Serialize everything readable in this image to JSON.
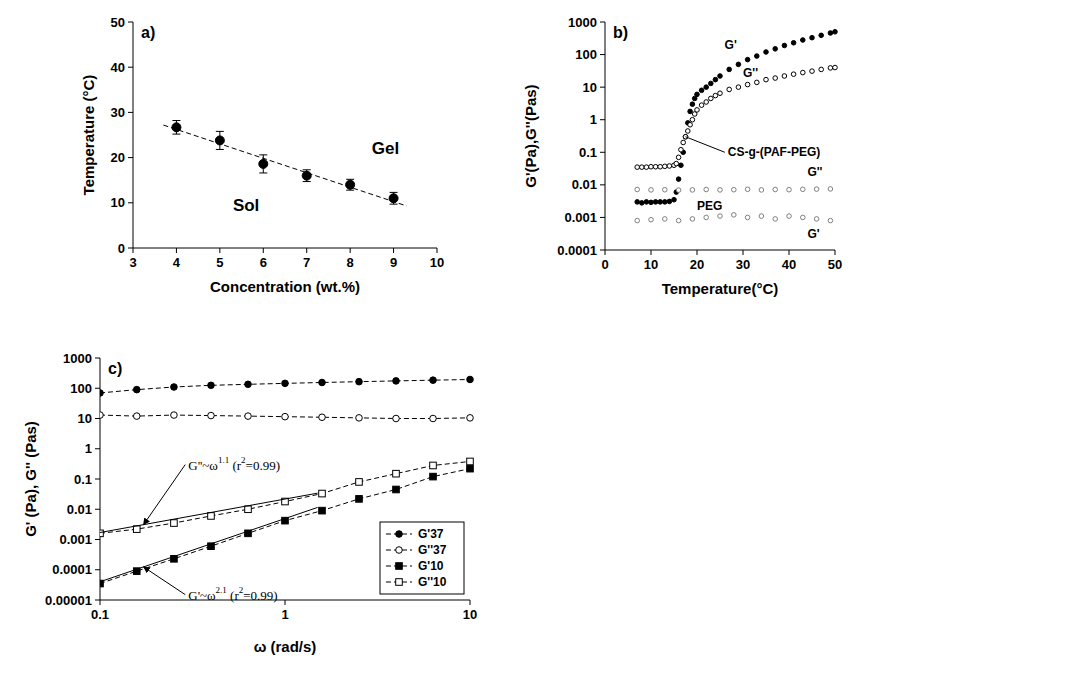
{
  "chart_data": [
    {
      "type": "scatter",
      "label": "a)",
      "x_label": "Concentration (wt.%)",
      "y_label": "Temperature (°C)",
      "xlim": [
        3,
        10
      ],
      "xticks": [
        3,
        4,
        5,
        6,
        7,
        8,
        9,
        10
      ],
      "ylim": [
        0,
        50
      ],
      "yticks": [
        0,
        10,
        20,
        30,
        40,
        50
      ],
      "grid": false,
      "series": [
        {
          "type": "scatter",
          "color": "#000000",
          "marker": "circle",
          "x": [
            4,
            5,
            6,
            7,
            8,
            9
          ],
          "values": [
            26.7,
            23.8,
            18.6,
            16,
            14,
            11
          ],
          "errors": [
            1.5,
            2,
            2,
            1.3,
            1.2,
            1.3
          ]
        },
        {
          "type": "line",
          "color": "#000000",
          "marker": "none",
          "line_style": "dashed",
          "x": [
            3.7,
            9.3
          ],
          "values": [
            27.2,
            9.3
          ]
        }
      ],
      "annotations": [
        {
          "text": "Gel",
          "x": 8.5,
          "y": 22
        },
        {
          "text": "Sol",
          "x": 5.3,
          "y": 9.5
        }
      ]
    },
    {
      "type": "scatter",
      "label": "b)",
      "x_label": "Temperature(°C)",
      "y_label": "G'(Pa),G''(Pas)",
      "log": "y",
      "xlim": [
        0,
        50
      ],
      "xticks": [
        0,
        10,
        20,
        30,
        40,
        50
      ],
      "ylim": [
        0.0001,
        1000
      ],
      "yticks": [
        0.0001,
        0.001,
        0.01,
        0.1,
        1,
        10,
        100,
        1000
      ],
      "grid": false,
      "series": [
        {
          "type": "scatter",
          "color": "#000000",
          "marker": "circle",
          "x": [
            7,
            8,
            9,
            10,
            11,
            12,
            13,
            14,
            15,
            15.5,
            16,
            16.5,
            17,
            17.5,
            18,
            18.5,
            19,
            19.5,
            20,
            21,
            22,
            23,
            24,
            25,
            27,
            29,
            31,
            33,
            35,
            37,
            39,
            41,
            43,
            45,
            47,
            49,
            50
          ],
          "values": [
            0.003,
            0.0028,
            0.003,
            0.0029,
            0.003,
            0.003,
            0.003,
            0.0031,
            0.0035,
            0.006,
            0.015,
            0.04,
            0.1,
            0.3,
            0.8,
            1.8,
            3,
            4.5,
            6,
            8,
            10,
            13,
            17,
            22,
            35,
            50,
            70,
            90,
            120,
            150,
            190,
            230,
            280,
            330,
            390,
            460,
            500
          ]
        },
        {
          "type": "scatter",
          "color": "#000000",
          "marker": "open_circle",
          "x": [
            7,
            8,
            9,
            10,
            11,
            12,
            13,
            14,
            15,
            15.5,
            16,
            16.5,
            17,
            17.5,
            18,
            18.5,
            19,
            19.5,
            20,
            21,
            22,
            23,
            24,
            25,
            27,
            29,
            31,
            33,
            35,
            37,
            39,
            41,
            43,
            45,
            47,
            49,
            50
          ],
          "values": [
            0.035,
            0.035,
            0.035,
            0.036,
            0.036,
            0.036,
            0.037,
            0.038,
            0.04,
            0.045,
            0.07,
            0.12,
            0.2,
            0.3,
            0.45,
            0.7,
            1,
            1.5,
            2,
            2.8,
            3.5,
            4.5,
            5.5,
            6.5,
            8.5,
            10,
            12,
            14,
            17,
            19,
            22,
            25,
            28,
            31,
            35,
            39,
            40
          ]
        },
        {
          "type": "scatter",
          "color": "#808080",
          "marker": "open_circle",
          "x": [
            7,
            10,
            13,
            16,
            19,
            22,
            25,
            28,
            31,
            34,
            37,
            40,
            43,
            46,
            49
          ],
          "values": [
            0.0072,
            0.007,
            0.0071,
            0.0069,
            0.007,
            0.0072,
            0.007,
            0.0071,
            0.0073,
            0.007,
            0.0072,
            0.0071,
            0.0073,
            0.0074,
            0.0075
          ]
        },
        {
          "type": "scatter",
          "color": "#808080",
          "marker": "open_circle",
          "x": [
            7,
            10,
            13,
            16,
            19,
            22,
            25,
            28,
            31,
            34,
            37,
            40,
            43,
            46,
            49
          ],
          "values": [
            0.0008,
            0.00085,
            0.0009,
            0.0008,
            0.0009,
            0.001,
            0.0011,
            0.0012,
            0.001,
            0.0011,
            0.0009,
            0.0011,
            0.001,
            0.0009,
            0.0008
          ]
        }
      ],
      "annotations": [
        {
          "text": "G'",
          "x": 26,
          "y": 200
        },
        {
          "text": "G''",
          "x": 30,
          "y": 28
        },
        {
          "text": "CS-g-(PAF-PEG)",
          "x": 26.7,
          "y": 0.1
        },
        {
          "text": "PEG",
          "x": 20,
          "y": 0.0022
        },
        {
          "text": "G''",
          "x": 44,
          "y": 0.025
        },
        {
          "text": "G'",
          "x": 44,
          "y": 0.0003
        }
      ]
    },
    {
      "type": "line",
      "label": "c)",
      "x_label": "ω (rad/s)",
      "y_label": "G' (Pa), G'' (Pas)",
      "log": true,
      "xlim": [
        0.1,
        10
      ],
      "xticks": [
        0.1,
        1,
        10
      ],
      "ylim": [
        1e-05,
        1000
      ],
      "yticks": [
        1e-05,
        0.0001,
        0.001,
        0.01,
        0.1,
        1,
        10,
        100,
        1000
      ],
      "grid": false,
      "legend": "lower right",
      "series": [
        {
          "name": "G'37",
          "color": "#000000",
          "marker": "circle",
          "line_style": "dashed",
          "x": [
            0.1,
            0.158,
            0.251,
            0.398,
            0.631,
            1,
            1.585,
            2.512,
            3.981,
            6.31,
            10
          ],
          "values": [
            70,
            90,
            110,
            125,
            135,
            145,
            155,
            165,
            175,
            185,
            195
          ]
        },
        {
          "name": "G''37",
          "color": "#000000",
          "marker": "open_circle",
          "line_style": "dashed",
          "x": [
            0.1,
            0.158,
            0.251,
            0.398,
            0.631,
            1,
            1.585,
            2.512,
            3.981,
            6.31,
            10
          ],
          "values": [
            13,
            12,
            13,
            12.5,
            12,
            11.5,
            11,
            10.5,
            10,
            10,
            10.5
          ]
        },
        {
          "name": "G'10",
          "color": "#000000",
          "marker": "square",
          "line_style": "dashed",
          "x": [
            0.1,
            0.158,
            0.251,
            0.398,
            0.631,
            1,
            1.585,
            2.512,
            3.981,
            6.31,
            10
          ],
          "values": [
            3.5e-05,
            9e-05,
            0.00023,
            0.0006,
            0.0016,
            0.0042,
            0.009,
            0.022,
            0.045,
            0.12,
            0.22
          ]
        },
        {
          "name": "G''10",
          "color": "#000000",
          "marker": "open_square",
          "line_style": "dashed",
          "x": [
            0.1,
            0.158,
            0.251,
            0.398,
            0.631,
            1,
            1.585,
            2.512,
            3.981,
            6.31,
            10
          ],
          "values": [
            0.0016,
            0.0022,
            0.0035,
            0.006,
            0.01,
            0.018,
            0.033,
            0.08,
            0.15,
            0.28,
            0.38
          ]
        },
        {
          "type": "line",
          "color": "#000000",
          "marker": "none",
          "line_style": "solid",
          "x": [
            0.1,
            1.5
          ],
          "values": [
            0.0017,
            0.034
          ]
        },
        {
          "type": "line",
          "color": "#000000",
          "marker": "none",
          "line_style": "solid",
          "x": [
            0.1,
            1.5
          ],
          "values": [
            4e-05,
            0.0115
          ]
        }
      ],
      "annotations": [
        {
          "segments": [
            {
              "text": "G''~ω"
            },
            {
              "text": "1.1",
              "sup": true
            },
            {
              "text": " (r"
            },
            {
              "text": "2",
              "sup": true
            },
            {
              "text": "=0.99)"
            }
          ],
          "x": 0.3,
          "y": 0.3
        },
        {
          "segments": [
            {
              "text": "G'~ω"
            },
            {
              "text": "2.1",
              "sup": true
            },
            {
              "text": " (r"
            },
            {
              "text": "2",
              "sup": true
            },
            {
              "text": "=0.99)"
            }
          ],
          "x": 0.3,
          "y": 1.5e-05
        }
      ]
    }
  ]
}
